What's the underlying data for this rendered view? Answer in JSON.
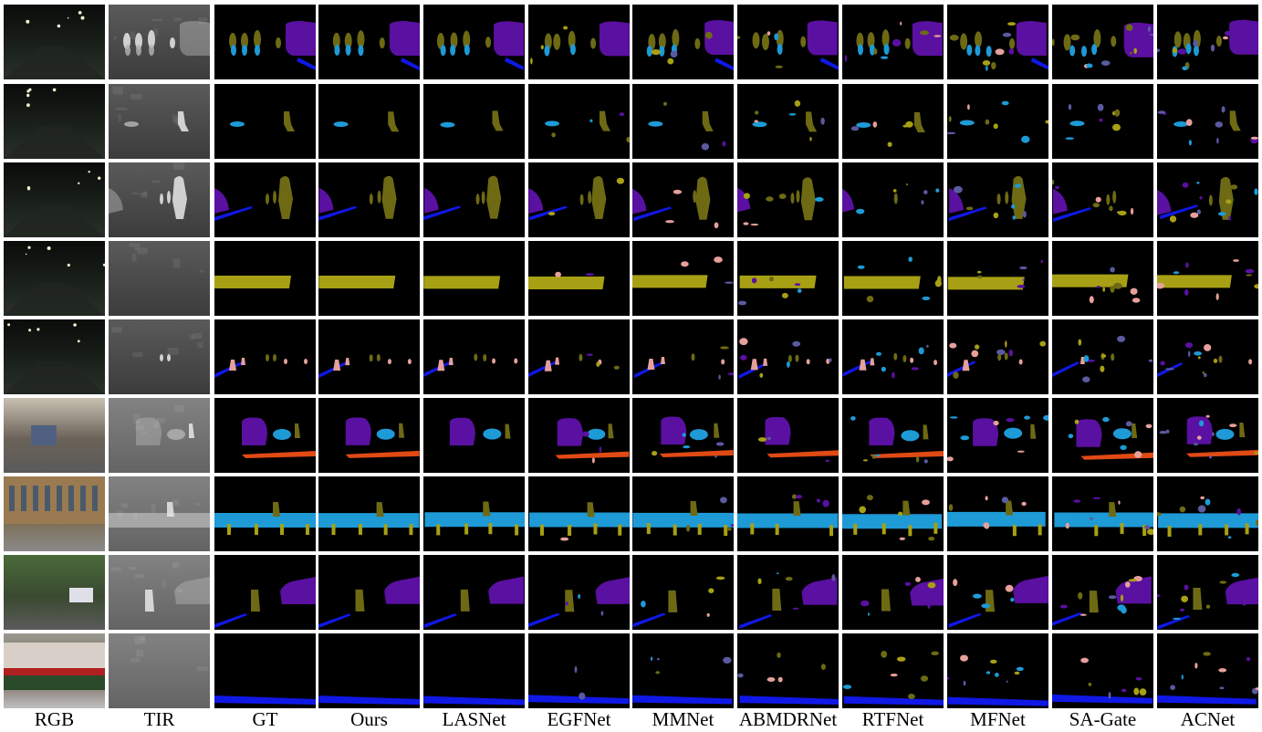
{
  "columns": [
    "RGB",
    "TIR",
    "GT",
    "Ours",
    "LASNet",
    "EGFNet",
    "MMNet",
    "ABMDRNet",
    "RTFNet",
    "MFNet",
    "SA-Gate",
    "ACNet"
  ],
  "rows": 9,
  "palette": {
    "background": "#000000",
    "car": "#5a10a0",
    "person": "#6e6a14",
    "bike": "#1e9ad6",
    "curve": "#1018e6",
    "car_stop": "#a8a014",
    "guardrail": "#5a5aa0",
    "color_cone": "#e6a09a",
    "bump": "#e04a14"
  },
  "rows_content": [
    {
      "rgb": "dark-street-night-cars",
      "tir": "thermal-pedestrians-bikes",
      "classes": [
        "person",
        "bike",
        "car",
        "curve"
      ]
    },
    {
      "rgb": "dark-park-night",
      "tir": "thermal-single-pedestrian",
      "classes": [
        "bike",
        "person"
      ]
    },
    {
      "rgb": "dark-path-trees-night",
      "tir": "thermal-walking-person",
      "classes": [
        "car",
        "person",
        "curve"
      ]
    },
    {
      "rgb": "dark-gate-signboard",
      "tir": "thermal-fence",
      "classes": [
        "car_stop",
        "guardrail",
        "car"
      ]
    },
    {
      "rgb": "dark-campus-road-lights",
      "tir": "thermal-road-cones",
      "classes": [
        "curve",
        "color_cone",
        "person"
      ]
    },
    {
      "rgb": "day-street-van",
      "tir": "thermal-van",
      "classes": [
        "car",
        "bike",
        "person",
        "bump"
      ]
    },
    {
      "rgb": "day-building-bikes",
      "tir": "thermal-building",
      "classes": [
        "bike",
        "car_stop",
        "person"
      ]
    },
    {
      "rgb": "day-trees-parked-car",
      "tir": "thermal-trees-car",
      "classes": [
        "person",
        "car",
        "curve"
      ]
    },
    {
      "rgb": "day-building-hedge",
      "tir": "thermal-building-hedge",
      "classes": [
        "curve"
      ]
    }
  ]
}
